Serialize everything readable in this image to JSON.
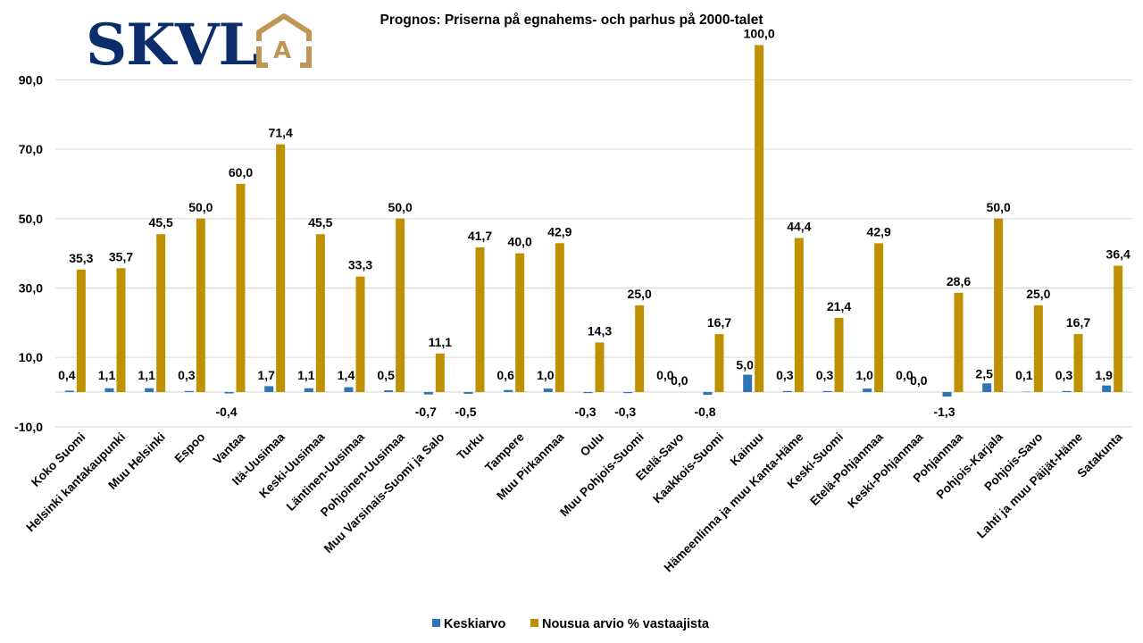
{
  "logo": {
    "text": "SKVL",
    "badge_letter": "A",
    "text_color": "#0b2d6b",
    "badge_color": "#c09655"
  },
  "chart_data": {
    "type": "bar",
    "title": "Prognos: Priserna på egnahems- och parhus  på 2000-talet",
    "xlabel": "",
    "ylabel": "",
    "ylim": [
      -10,
      100
    ],
    "yticks": [
      90,
      70,
      50,
      30,
      10,
      -10
    ],
    "ytick_labels": [
      "90,0",
      "70,0",
      "50,0",
      "30,0",
      "10,0",
      "-10,0"
    ],
    "grid": true,
    "legend_position": "bottom",
    "categories": [
      "Koko Suomi",
      "Helsinki kantakaupunki",
      "Muu Helsinki",
      "Espoo",
      "Vantaa",
      "Itä-Uusimaa",
      "Keski-Uusimaa",
      "Läntinen-Uusimaa",
      "Pohjoinen-Uusimaa",
      "Muu Varsinais-Suomi ja Salo",
      "Turku",
      "Tampere",
      "Muu Pirkanmaa",
      "Oulu",
      "Muu Pohjois-Suomi",
      "Etelä-Savo",
      "Kaakkois-Suomi",
      "Kainuu",
      "Hämeenlinna ja muu Kanta-Häme",
      "Keski-Suomi",
      "Etelä-Pohjanmaa",
      "Keski-Pohjanmaa",
      "Pohjanmaa",
      "Pohjois-Karjala",
      "Pohjois-Savo",
      "Lahti ja muu Päijät-Häme",
      "Satakunta"
    ],
    "series": [
      {
        "name": "Keskiarvo",
        "color": "#2e75b6",
        "values": [
          0.4,
          1.1,
          1.1,
          0.3,
          -0.4,
          1.7,
          1.1,
          1.4,
          0.5,
          -0.7,
          -0.5,
          0.6,
          1.0,
          -0.3,
          -0.3,
          0.0,
          -0.8,
          5.0,
          0.3,
          0.3,
          1.0,
          0.0,
          -1.3,
          2.5,
          0.1,
          0.3,
          1.9
        ],
        "labels": [
          "0,4",
          "1,1",
          "1,1",
          "0,3",
          "-0,4",
          "1,7",
          "1,1",
          "1,4",
          "0,5",
          "-0,7",
          "-0,5",
          "0,6",
          "1,0",
          "-0,3",
          "-0,3",
          "0,0",
          "-0,8",
          "5,0",
          "0,3",
          "0,3",
          "1,0",
          "0,0",
          "-1,3",
          "2,5",
          "0,1",
          "0,3",
          "1,9"
        ]
      },
      {
        "name": "Nousua arvio % vastaajista",
        "color": "#bf9000",
        "values": [
          35.3,
          35.7,
          45.5,
          50.0,
          60.0,
          71.4,
          45.5,
          33.3,
          50.0,
          11.1,
          41.7,
          40.0,
          42.9,
          14.3,
          25.0,
          0.0,
          16.7,
          100.0,
          44.4,
          21.4,
          42.9,
          0.0,
          28.6,
          50.0,
          25.0,
          16.7,
          36.4
        ],
        "labels": [
          "35,3",
          "35,7",
          "45,5",
          "50,0",
          "60,0",
          "71,4",
          "45,5",
          "33,3",
          "50,0",
          "11,1",
          "41,7",
          "40,0",
          "42,9",
          "14,3",
          "25,0",
          "0,0",
          "16,7",
          "100,0",
          "44,4",
          "21,4",
          "42,9",
          "0,0",
          "28,6",
          "50,0",
          "25,0",
          "16,7",
          "36,4"
        ]
      }
    ]
  }
}
